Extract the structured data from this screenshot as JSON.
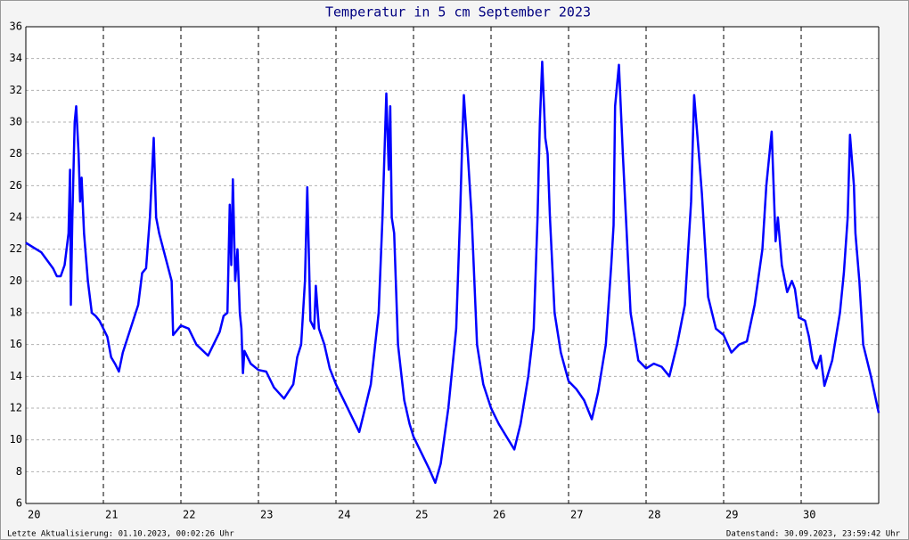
{
  "chart_data": {
    "type": "line",
    "title": "Temperatur in 5 cm September 2023",
    "footer": {
      "left": "Letzte Aktualisierung: 01.10.2023, 00:02:26 Uhr",
      "right": "Datenstand: 30.09.2023, 23:59:42 Uhr"
    },
    "xlim": [
      20,
      31
    ],
    "xticks": [
      20,
      21,
      22,
      23,
      24,
      25,
      26,
      27,
      28,
      29,
      30
    ],
    "ylim": [
      6,
      36
    ],
    "yticks": [
      6,
      8,
      10,
      12,
      14,
      16,
      18,
      20,
      22,
      24,
      26,
      28,
      30,
      32,
      34,
      36
    ],
    "grid": true,
    "x": [
      20.0,
      20.2,
      20.35,
      20.4,
      20.45,
      20.5,
      20.55,
      20.57,
      20.58,
      20.6,
      20.63,
      20.65,
      20.68,
      20.7,
      20.72,
      20.75,
      20.8,
      20.85,
      20.9,
      20.95,
      21.0,
      21.05,
      21.1,
      21.15,
      21.2,
      21.25,
      21.35,
      21.45,
      21.5,
      21.55,
      21.6,
      21.65,
      21.68,
      21.72,
      21.8,
      21.88,
      21.9,
      22.0,
      22.1,
      22.2,
      22.35,
      22.5,
      22.55,
      22.6,
      22.63,
      22.65,
      22.67,
      22.7,
      22.73,
      22.76,
      22.78,
      22.8,
      22.82,
      22.9,
      23.0,
      23.1,
      23.2,
      23.33,
      23.45,
      23.5,
      23.55,
      23.6,
      23.63,
      23.67,
      23.72,
      23.74,
      23.78,
      23.85,
      23.92,
      24.0,
      24.1,
      24.2,
      24.3,
      24.35,
      24.45,
      24.55,
      24.6,
      24.65,
      24.68,
      24.7,
      24.72,
      24.75,
      24.8,
      24.88,
      24.95,
      25.0,
      25.1,
      25.2,
      25.28,
      25.35,
      25.45,
      25.55,
      25.6,
      25.63,
      25.65,
      25.7,
      25.75,
      25.82,
      25.9,
      26.0,
      26.1,
      26.2,
      26.3,
      26.38,
      26.48,
      26.55,
      26.6,
      26.63,
      26.66,
      26.7,
      26.73,
      26.76,
      26.82,
      26.9,
      27.0,
      27.1,
      27.2,
      27.3,
      27.38,
      27.48,
      27.55,
      27.58,
      27.6,
      27.65,
      27.7,
      27.73,
      27.8,
      27.9,
      28.0,
      28.1,
      28.2,
      28.3,
      28.4,
      28.5,
      28.58,
      28.62,
      28.68,
      28.72,
      28.8,
      28.9,
      29.0,
      29.1,
      29.2,
      29.3,
      29.4,
      29.5,
      29.55,
      29.62,
      29.67,
      29.7,
      29.75,
      29.82,
      29.88,
      29.92,
      29.97,
      30.05,
      30.1,
      30.15,
      30.2,
      30.25,
      30.3,
      30.4,
      30.5,
      30.55,
      30.6,
      30.63,
      30.68,
      30.7,
      30.75,
      30.8,
      30.9,
      31.0
    ],
    "series": [
      {
        "color": "#0000ff",
        "values": [
          22.4,
          21.8,
          20.8,
          20.3,
          20.3,
          21,
          23,
          27,
          18.5,
          24,
          30,
          31,
          28,
          25,
          26.5,
          23,
          20,
          18,
          17.8,
          17.5,
          17,
          16.5,
          15.2,
          14.8,
          14.3,
          15.5,
          17,
          18.5,
          20.5,
          20.8,
          24,
          29,
          24,
          23,
          21.5,
          20,
          16.6,
          17.2,
          17,
          16,
          15.3,
          16.8,
          17.8,
          18,
          24.8,
          21,
          26.4,
          20,
          22,
          18,
          17,
          14.2,
          15.6,
          14.8,
          14.4,
          14.3,
          13.3,
          12.6,
          13.5,
          15.2,
          16,
          20,
          25.9,
          17.5,
          17,
          19.7,
          17,
          16,
          14.5,
          13.5,
          12.5,
          11.5,
          10.5,
          11.5,
          13.5,
          18,
          24,
          31.8,
          27,
          31,
          24,
          23,
          16,
          12.5,
          11,
          10.2,
          9.2,
          8.2,
          7.3,
          8.5,
          12,
          17,
          24,
          29,
          31.7,
          28,
          24,
          16,
          13.5,
          12,
          11,
          10.2,
          9.4,
          11,
          14,
          17,
          24,
          30,
          33.8,
          29,
          28,
          24,
          18,
          15.5,
          13.7,
          13.2,
          12.5,
          11.3,
          13,
          16,
          21,
          23.5,
          31,
          33.6,
          28,
          25,
          18,
          15,
          14.5,
          14.8,
          14.6,
          14,
          16,
          18.5,
          25,
          31.7,
          28,
          25.5,
          19,
          17,
          16.6,
          15.5,
          16,
          16.2,
          18.5,
          22,
          26,
          29.4,
          22.5,
          24,
          21,
          19.3,
          20,
          19.5,
          17.7,
          17.5,
          16.5,
          15,
          14.5,
          15.3,
          13.4,
          15,
          18,
          20.5,
          24,
          29.2,
          26,
          23,
          20,
          16,
          14,
          11.7
        ]
      }
    ]
  }
}
